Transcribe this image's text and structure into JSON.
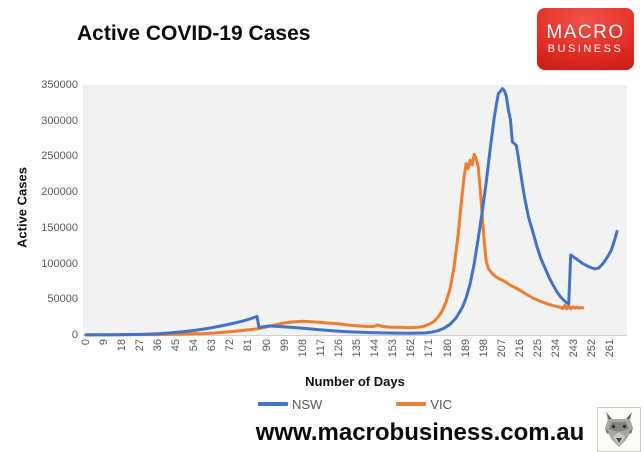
{
  "header": {
    "title": "Active COVID-19 Cases"
  },
  "logo": {
    "line1": "MACRO",
    "line2": "BUSINESS",
    "bg_color": "#d92420",
    "text_color": "#ffffff"
  },
  "footer": {
    "url": "www.macrobusiness.com.au",
    "wolf_icon": "wolf-logo"
  },
  "colors": {
    "nsw": "#4472C4",
    "vic": "#ED7D31",
    "plot_bg": "#f2f2f2",
    "axis_label": "#595959",
    "axis_line": "#d0cece"
  },
  "chart_data": {
    "type": "line",
    "title": "Active COVID-19 Cases",
    "xlabel": "Number of Days",
    "ylabel": "Active Cases",
    "xlim": [
      0,
      264
    ],
    "ylim": [
      0,
      350000
    ],
    "x_ticks": [
      0,
      9,
      18,
      27,
      36,
      45,
      54,
      63,
      72,
      81,
      90,
      99,
      108,
      117,
      126,
      135,
      144,
      153,
      162,
      171,
      180,
      189,
      198,
      207,
      216,
      225,
      234,
      243,
      252,
      261
    ],
    "y_ticks": [
      0,
      50000,
      100000,
      150000,
      200000,
      250000,
      300000,
      350000
    ],
    "grid": false,
    "legend_position": "bottom",
    "series": [
      {
        "name": "VIC",
        "color": "#ED7D31",
        "points": [
          [
            0,
            100
          ],
          [
            10,
            200
          ],
          [
            20,
            350
          ],
          [
            30,
            600
          ],
          [
            40,
            900
          ],
          [
            50,
            1400
          ],
          [
            58,
            2000
          ],
          [
            64,
            2800
          ],
          [
            70,
            4200
          ],
          [
            76,
            5800
          ],
          [
            80,
            7000
          ],
          [
            84,
            8200
          ],
          [
            87,
            9500
          ],
          [
            90,
            11500
          ],
          [
            93,
            13500
          ],
          [
            96,
            15500
          ],
          [
            99,
            17000
          ],
          [
            102,
            18000
          ],
          [
            105,
            18800
          ],
          [
            108,
            19200
          ],
          [
            111,
            18800
          ],
          [
            114,
            18200
          ],
          [
            117,
            17600
          ],
          [
            120,
            16800
          ],
          [
            123,
            16200
          ],
          [
            126,
            15600
          ],
          [
            129,
            14400
          ],
          [
            132,
            13400
          ],
          [
            135,
            12800
          ],
          [
            138,
            12200
          ],
          [
            141,
            11800
          ],
          [
            143,
            12000
          ],
          [
            145,
            13800
          ],
          [
            147,
            12200
          ],
          [
            150,
            11200
          ],
          [
            153,
            10800
          ],
          [
            156,
            10800
          ],
          [
            159,
            10300
          ],
          [
            162,
            10300
          ],
          [
            165,
            10800
          ],
          [
            168,
            12200
          ],
          [
            171,
            15500
          ],
          [
            173,
            19000
          ],
          [
            175,
            25000
          ],
          [
            177,
            33000
          ],
          [
            179,
            46000
          ],
          [
            181,
            65000
          ],
          [
            183,
            95000
          ],
          [
            185,
            140000
          ],
          [
            186,
            168000
          ],
          [
            187,
            196000
          ],
          [
            188,
            222000
          ],
          [
            189,
            240000
          ],
          [
            190,
            233000
          ],
          [
            191,
            245000
          ],
          [
            192,
            238000
          ],
          [
            193,
            253000
          ],
          [
            194,
            247000
          ],
          [
            195,
            236000
          ],
          [
            196,
            205000
          ],
          [
            197,
            168000
          ],
          [
            198,
            130000
          ],
          [
            199,
            103000
          ],
          [
            200,
            93000
          ],
          [
            202,
            86000
          ],
          [
            204,
            81000
          ],
          [
            206,
            78000
          ],
          [
            208,
            75500
          ],
          [
            210,
            71500
          ],
          [
            212,
            68000
          ],
          [
            214,
            65500
          ],
          [
            216,
            62000
          ],
          [
            218,
            58500
          ],
          [
            220,
            55500
          ],
          [
            222,
            52000
          ],
          [
            224,
            49500
          ],
          [
            226,
            47000
          ],
          [
            228,
            45000
          ],
          [
            230,
            43000
          ],
          [
            232,
            41500
          ],
          [
            234,
            40000
          ],
          [
            236,
            38500
          ],
          [
            237,
            37000
          ],
          [
            238,
            41500
          ],
          [
            239,
            36500
          ],
          [
            240,
            41000
          ],
          [
            241,
            36500
          ],
          [
            242,
            39500
          ],
          [
            243,
            37500
          ],
          [
            244,
            39000
          ],
          [
            245,
            37500
          ],
          [
            246,
            38500
          ],
          [
            247,
            38000
          ]
        ]
      },
      {
        "name": "NSW",
        "color": "#4472C4",
        "points": [
          [
            0,
            200
          ],
          [
            6,
            250
          ],
          [
            12,
            350
          ],
          [
            18,
            500
          ],
          [
            24,
            700
          ],
          [
            30,
            1100
          ],
          [
            36,
            1800
          ],
          [
            42,
            3000
          ],
          [
            48,
            4500
          ],
          [
            54,
            6500
          ],
          [
            60,
            9000
          ],
          [
            66,
            12000
          ],
          [
            72,
            15500
          ],
          [
            78,
            19500
          ],
          [
            82,
            23000
          ],
          [
            85,
            26000
          ],
          [
            86,
            10500
          ],
          [
            88,
            11500
          ],
          [
            91,
            12800
          ],
          [
            94,
            12300
          ],
          [
            97,
            11800
          ],
          [
            100,
            11200
          ],
          [
            104,
            10300
          ],
          [
            108,
            9400
          ],
          [
            112,
            8400
          ],
          [
            116,
            7400
          ],
          [
            120,
            6400
          ],
          [
            125,
            5400
          ],
          [
            130,
            4600
          ],
          [
            135,
            4000
          ],
          [
            140,
            3500
          ],
          [
            145,
            3100
          ],
          [
            150,
            2800
          ],
          [
            155,
            2600
          ],
          [
            160,
            2500
          ],
          [
            165,
            2600
          ],
          [
            169,
            3000
          ],
          [
            172,
            4000
          ],
          [
            175,
            6000
          ],
          [
            178,
            9500
          ],
          [
            181,
            15000
          ],
          [
            184,
            24000
          ],
          [
            187,
            38000
          ],
          [
            189,
            52000
          ],
          [
            191,
            72000
          ],
          [
            193,
            100000
          ],
          [
            195,
            135000
          ],
          [
            197,
            172000
          ],
          [
            199,
            215000
          ],
          [
            201,
            262000
          ],
          [
            203,
            305000
          ],
          [
            204,
            322000
          ],
          [
            205,
            338000
          ],
          [
            206,
            341000
          ],
          [
            207,
            345000
          ],
          [
            208,
            342000
          ],
          [
            209,
            334000
          ],
          [
            210,
            315000
          ],
          [
            211,
            302000
          ],
          [
            212,
            270000
          ],
          [
            213,
            268000
          ],
          [
            214,
            265000
          ],
          [
            215,
            248000
          ],
          [
            216,
            228000
          ],
          [
            217,
            210000
          ],
          [
            218,
            193000
          ],
          [
            220,
            165000
          ],
          [
            222,
            146000
          ],
          [
            224,
            126000
          ],
          [
            226,
            108000
          ],
          [
            228,
            95000
          ],
          [
            230,
            82000
          ],
          [
            232,
            71000
          ],
          [
            234,
            61000
          ],
          [
            236,
            53000
          ],
          [
            238,
            47500
          ],
          [
            239,
            45000
          ],
          [
            240,
            43500
          ],
          [
            241,
            112000
          ],
          [
            243,
            108000
          ],
          [
            245,
            104000
          ],
          [
            247,
            100000
          ],
          [
            249,
            97000
          ],
          [
            251,
            94500
          ],
          [
            253,
            92500
          ],
          [
            255,
            94000
          ],
          [
            257,
            100000
          ],
          [
            259,
            108000
          ],
          [
            261,
            118000
          ],
          [
            262,
            126000
          ],
          [
            263,
            135000
          ],
          [
            264,
            145000
          ]
        ]
      }
    ]
  }
}
